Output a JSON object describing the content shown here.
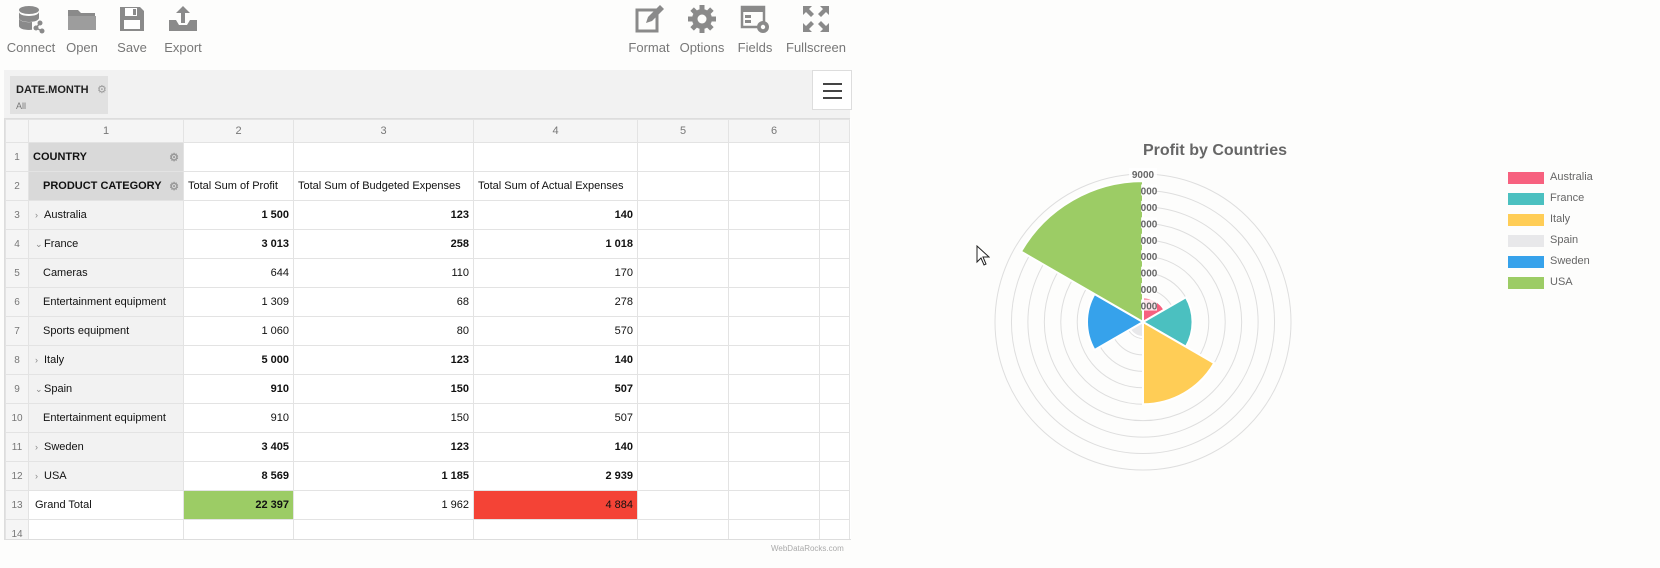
{
  "toolbar": {
    "connect": "Connect",
    "open": "Open",
    "save": "Save",
    "export": "Export",
    "format": "Format",
    "options": "Options",
    "fields": "Fields",
    "fullscreen": "Fullscreen"
  },
  "filter": {
    "field": "DATE.MONTH",
    "value": "All"
  },
  "grid": {
    "col_headers": [
      "1",
      "2",
      "3",
      "4",
      "5",
      "6"
    ],
    "row_numbers": [
      "1",
      "2",
      "3",
      "4",
      "5",
      "6",
      "7",
      "8",
      "9",
      "10",
      "11",
      "12",
      "13",
      "14"
    ],
    "row_header_label": "COUNTRY",
    "col_header_label": "PRODUCT CATEGORY",
    "measures": [
      "Total Sum of Profit",
      "Total Sum of Budgeted Expenses",
      "Total Sum of Actual Expenses"
    ],
    "rows": [
      {
        "label": "Australia",
        "expander": "›",
        "profit": "1 500",
        "budget": "123",
        "actual": "140"
      },
      {
        "label": "France",
        "expander": "⌄",
        "profit": "3 013",
        "budget": "258",
        "actual": "1 018"
      },
      {
        "label": "Cameras",
        "expander": "",
        "profit": "644",
        "budget": "110",
        "actual": "170"
      },
      {
        "label": "Entertainment equipment",
        "expander": "",
        "profit": "1 309",
        "budget": "68",
        "actual": "278"
      },
      {
        "label": "Sports equipment",
        "expander": "",
        "profit": "1 060",
        "budget": "80",
        "actual": "570"
      },
      {
        "label": "Italy",
        "expander": "›",
        "profit": "5 000",
        "budget": "123",
        "actual": "140"
      },
      {
        "label": "Spain",
        "expander": "⌄",
        "profit": "910",
        "budget": "150",
        "actual": "507"
      },
      {
        "label": "Entertainment equipment",
        "expander": "",
        "profit": "910",
        "budget": "150",
        "actual": "507"
      },
      {
        "label": "Sweden",
        "expander": "›",
        "profit": "3 405",
        "budget": "123",
        "actual": "140"
      },
      {
        "label": "USA",
        "expander": "›",
        "profit": "8 569",
        "budget": "1 185",
        "actual": "2 939"
      }
    ],
    "grand_total": {
      "label": "Grand Total",
      "profit": "22 397",
      "budget": "1 962",
      "actual": "4 884"
    },
    "highlight_good": "#9ccc65",
    "highlight_bad": "#f44336"
  },
  "watermark": "WebDataRocks.com",
  "chart_data": {
    "type": "polarArea",
    "title": "Profit by Countries",
    "categories": [
      "Australia",
      "France",
      "Italy",
      "Spain",
      "Sweden",
      "USA"
    ],
    "values": [
      1500,
      3013,
      5000,
      910,
      3405,
      8569
    ],
    "colors": [
      "#f7617f",
      "#4bc0c0",
      "#ffcd56",
      "#e8e8ea",
      "#36a2eb",
      "#9ccc65"
    ],
    "rmax": 9000,
    "ticks": [
      1000,
      2000,
      3000,
      4000,
      5000,
      6000,
      7000,
      8000,
      9000
    ],
    "tick_labels_visible": [
      "9000",
      "000",
      "000",
      "000",
      "000",
      "000",
      "000",
      "000",
      "000"
    ],
    "legend_position": "right"
  }
}
